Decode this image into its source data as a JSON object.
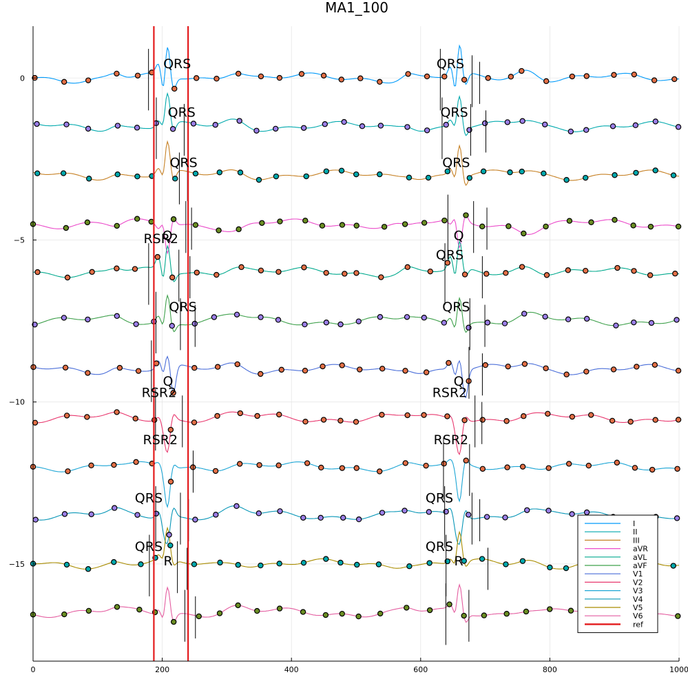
{
  "chart_data": {
    "type": "line",
    "title": "MA1_100",
    "xlim": [
      0,
      1000
    ],
    "ylim": [
      -18,
      1.6
    ],
    "grid": true,
    "legend_position": "bottom-right",
    "x_ticks": [
      0,
      200,
      400,
      600,
      800,
      1000
    ],
    "y_ticks": [
      0,
      -5,
      -10,
      -15
    ],
    "beats": [
      208,
      660
    ],
    "ref_lines": [
      187,
      240
    ],
    "ref_label": "ref",
    "ref_color": "#e31a1c",
    "series": [
      {
        "name": "I",
        "color": "#009AFA",
        "baseline": 0,
        "qrs": [
          0.3,
          -0.7,
          1.0,
          -0.4
        ],
        "t_wave": 0.28,
        "marker": "#E26F46",
        "label": "QRS",
        "label_dx": -30,
        "label_dy": 0.3
      },
      {
        "name": "II",
        "color": "#00A9AD",
        "baseline": -1.5,
        "qrs": [
          0.2,
          -0.2,
          1.0,
          -0.3
        ],
        "t_wave": 0.2,
        "marker": "#9B7FE8",
        "label": "QRS",
        "label_dx": -22,
        "label_dy": 0.3
      },
      {
        "name": "III",
        "color": "#C68125",
        "baseline": -3.0,
        "qrs": [
          0.2,
          -0.3,
          1.0,
          -0.35
        ],
        "t_wave": 0.15,
        "marker": "#00A9AD",
        "label": "QRS",
        "label_dx": -20,
        "label_dy": 0.25
      },
      {
        "name": "aVR",
        "color": "#EB4BCA",
        "baseline": -4.5,
        "qrs": [
          -0.15,
          0.2,
          -0.9,
          0.25
        ],
        "t_wave": -0.2,
        "marker": "#6B8E23",
        "label": "",
        "label_dx": 0,
        "label_dy": 0
      },
      {
        "name": "aVL",
        "color": "#00A98D",
        "baseline": -6.0,
        "qrs": [
          0.4,
          -0.5,
          0.9,
          -0.3
        ],
        "t_wave": 0.25,
        "marker": "#E26F46",
        "label": "RSR2",
        "label_dx": -30,
        "label_dy": 1.1
      },
      {
        "name": "aVF",
        "color": "#3EA04B",
        "baseline": -7.5,
        "qrs": [
          0.2,
          -0.3,
          0.9,
          -0.3
        ],
        "t_wave": 0.15,
        "marker": "#9B7FE8",
        "label": "QRS",
        "label_dx": -22,
        "label_dy": 0.3
      },
      {
        "name": "V1",
        "color": "#4A6ED9",
        "baseline": -9.0,
        "qrs": [
          0.25,
          -0.3,
          0.4,
          -0.9
        ],
        "t_wave": 0.2,
        "marker": "#E26F46",
        "label": "RSR2",
        "label_dx": -32,
        "label_dy": 0.0
      },
      {
        "name": "V2",
        "color": "#E8386E",
        "baseline": -10.5,
        "qrs": [
          0.1,
          -0.2,
          -1.0,
          0.2
        ],
        "t_wave": 0.1,
        "marker": "#E26F46",
        "label": "RSR2",
        "label_dx": -30,
        "label_dy": 0.8
      },
      {
        "name": "V3",
        "color": "#1BA5D5",
        "baseline": -12.0,
        "qrs": [
          0.1,
          -0.1,
          -1.2,
          0.15
        ],
        "t_wave": 0.1,
        "marker": "#E26F46",
        "label": "QRS",
        "label_dx": -32,
        "label_dy": 1.3
      },
      {
        "name": "V4",
        "color": "#0796B7",
        "baseline": -13.5,
        "qrs": [
          0.2,
          -0.3,
          -0.8,
          0.3
        ],
        "t_wave": 0.2,
        "marker": "#9B7FE8",
        "label": "QRS",
        "label_dx": -32,
        "label_dy": 0.4
      },
      {
        "name": "V5",
        "color": "#A98C00",
        "baseline": -15.0,
        "qrs": [
          0.15,
          -0.2,
          1.0,
          -0.2
        ],
        "t_wave": 0.12,
        "marker": "#00A9AD",
        "label": "QRS",
        "label_dx": -32,
        "label_dy": 0.4
      },
      {
        "name": "V6",
        "color": "#E45DA0",
        "baseline": -16.5,
        "qrs": [
          0.15,
          -0.3,
          0.9,
          -0.3
        ],
        "t_wave": 0.15,
        "marker": "#6B8E23",
        "label": "R",
        "label_dx": 16,
        "label_dy": 1.4
      }
    ],
    "annotations": [
      {
        "text": "QRS",
        "x": 223,
        "y": 0.3
      },
      {
        "text": "QRS",
        "x": 646,
        "y": 0.3
      },
      {
        "text": "QRS",
        "x": 230,
        "y": -1.2
      },
      {
        "text": "QRS",
        "x": 652,
        "y": -1.2
      },
      {
        "text": "QRS",
        "x": 233,
        "y": -2.75
      },
      {
        "text": "QRS",
        "x": 655,
        "y": -2.75
      },
      {
        "text": "RSR2",
        "x": 198,
        "y": -5.1
      },
      {
        "text": "Q",
        "x": 208,
        "y": -5.0
      },
      {
        "text": "Q",
        "x": 659,
        "y": -5.0
      },
      {
        "text": "QRS",
        "x": 645,
        "y": -5.6
      },
      {
        "text": "QRS",
        "x": 232,
        "y": -7.2
      },
      {
        "text": "QRS",
        "x": 655,
        "y": -7.2
      },
      {
        "text": "Q",
        "x": 209,
        "y": -9.5
      },
      {
        "text": "Q",
        "x": 659,
        "y": -9.5
      },
      {
        "text": "RSR2",
        "x": 195,
        "y": -9.85
      },
      {
        "text": "RSR2",
        "x": 645,
        "y": -9.85
      },
      {
        "text": "RSR2",
        "x": 197,
        "y": -11.3
      },
      {
        "text": "RSR2",
        "x": 647,
        "y": -11.3
      },
      {
        "text": "QRS",
        "x": 179,
        "y": -13.1
      },
      {
        "text": "QRS",
        "x": 629,
        "y": -13.1
      },
      {
        "text": "QRS",
        "x": 179,
        "y": -14.6
      },
      {
        "text": "QRS",
        "x": 629,
        "y": -14.6
      },
      {
        "text": "R",
        "x": 209,
        "y": -15.05
      },
      {
        "text": "R",
        "x": 659,
        "y": -15.05
      }
    ]
  }
}
